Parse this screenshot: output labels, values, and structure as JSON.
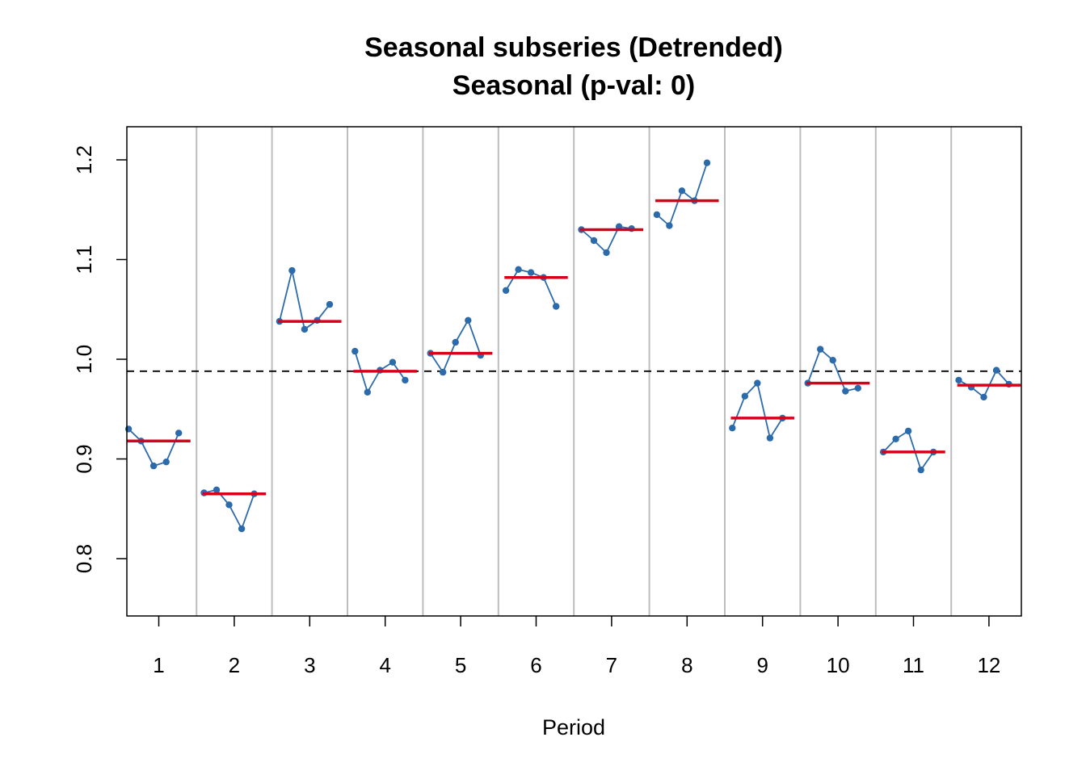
{
  "chart_data": {
    "type": "line",
    "title": "Seasonal subseries (Detrended)",
    "subtitle": "Seasonal (p-val: 0)",
    "xlabel": "Period",
    "ylabel": "",
    "x_ticks": [
      "1",
      "2",
      "3",
      "4",
      "5",
      "6",
      "7",
      "8",
      "9",
      "10",
      "11",
      "12"
    ],
    "y_ticks": [
      "0.8",
      "0.9",
      "1.0",
      "1.1",
      "1.2"
    ],
    "ylim": [
      0.74,
      1.233
    ],
    "reference_line": 0.988,
    "grid": false,
    "colors": {
      "series": "#2c6bab",
      "mean": "#d7001a",
      "separator": "#bdbdbd",
      "reference": "#000000"
    },
    "subseries": [
      {
        "period": "1",
        "values": [
          0.93,
          0.918,
          0.893,
          0.897,
          0.926
        ],
        "mean": 0.918
      },
      {
        "period": "2",
        "values": [
          0.866,
          0.869,
          0.854,
          0.83,
          0.865
        ],
        "mean": 0.865
      },
      {
        "period": "3",
        "values": [
          1.038,
          1.089,
          1.03,
          1.039,
          1.055
        ],
        "mean": 1.038
      },
      {
        "period": "4",
        "values": [
          1.008,
          0.967,
          0.989,
          0.997,
          0.979
        ],
        "mean": 0.988
      },
      {
        "period": "5",
        "values": [
          1.006,
          0.987,
          1.017,
          1.039,
          1.004
        ],
        "mean": 1.006
      },
      {
        "period": "6",
        "values": [
          1.069,
          1.09,
          1.087,
          1.082,
          1.053
        ],
        "mean": 1.082
      },
      {
        "period": "7",
        "values": [
          1.13,
          1.119,
          1.107,
          1.133,
          1.131
        ],
        "mean": 1.13
      },
      {
        "period": "8",
        "values": [
          1.145,
          1.134,
          1.169,
          1.159,
          1.197
        ],
        "mean": 1.159
      },
      {
        "period": "9",
        "values": [
          0.931,
          0.963,
          0.976,
          0.921,
          0.941
        ],
        "mean": 0.941
      },
      {
        "period": "10",
        "values": [
          0.976,
          1.01,
          0.999,
          0.968,
          0.971
        ],
        "mean": 0.976
      },
      {
        "period": "11",
        "values": [
          0.907,
          0.92,
          0.928,
          0.889,
          0.907
        ],
        "mean": 0.907
      },
      {
        "period": "12",
        "values": [
          0.979,
          0.972,
          0.962,
          0.989,
          0.975
        ],
        "mean": 0.974
      }
    ]
  }
}
